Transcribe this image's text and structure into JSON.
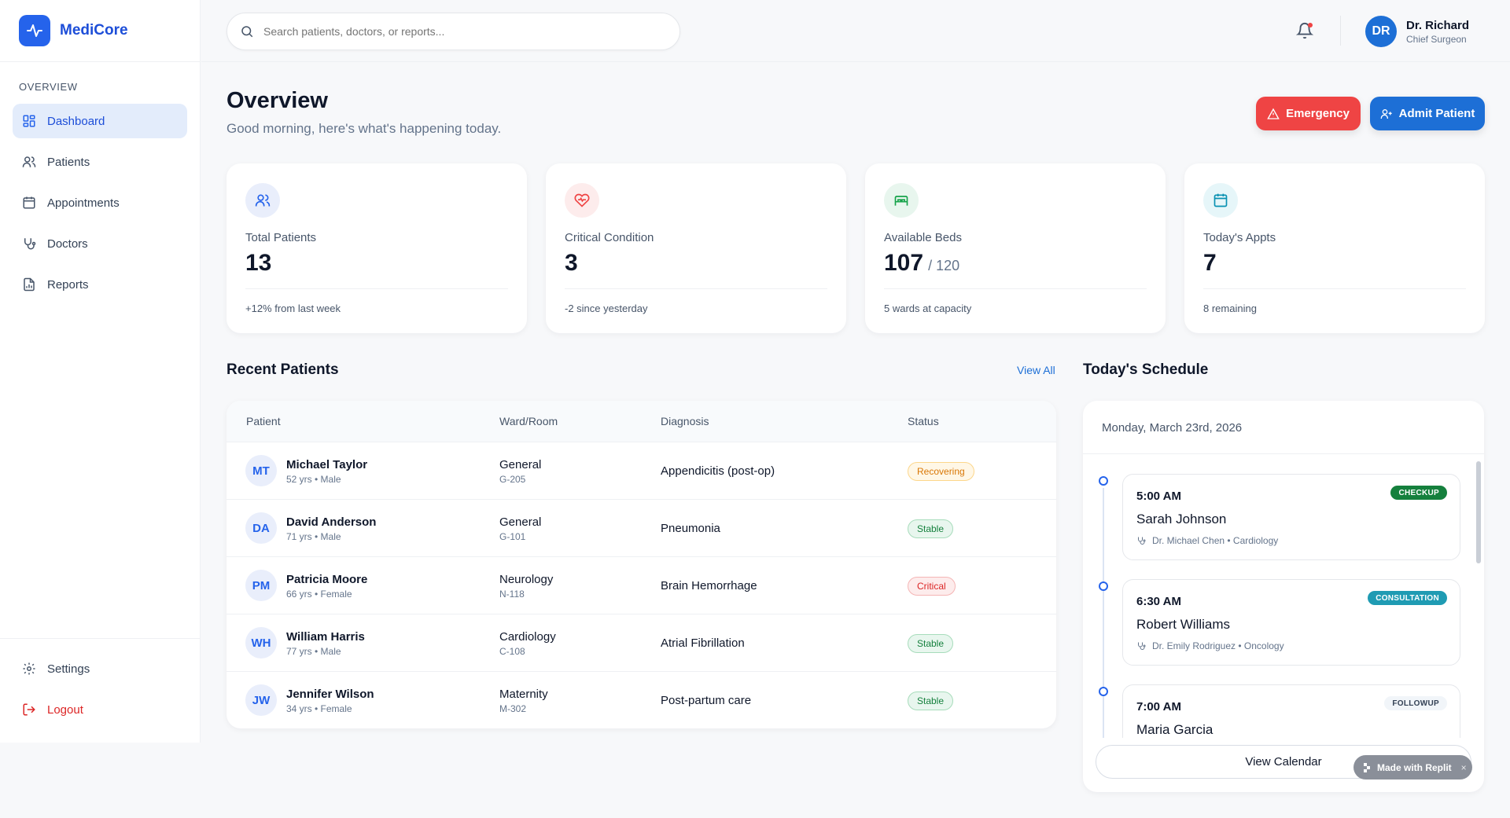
{
  "brand": {
    "name": "MediCore"
  },
  "sidebar": {
    "heading": "OVERVIEW",
    "items": [
      {
        "label": "Dashboard",
        "icon": "dashboard-icon",
        "active": true
      },
      {
        "label": "Patients",
        "icon": "users-icon"
      },
      {
        "label": "Appointments",
        "icon": "calendar-icon"
      },
      {
        "label": "Doctors",
        "icon": "stethoscope-icon"
      },
      {
        "label": "Reports",
        "icon": "report-icon"
      }
    ],
    "bottom": [
      {
        "label": "Settings",
        "icon": "gear-icon"
      },
      {
        "label": "Logout",
        "icon": "logout-icon"
      }
    ]
  },
  "header": {
    "search_placeholder": "Search patients, doctors, or reports...",
    "user": {
      "initials": "DR",
      "name": "Dr. Richard",
      "role": "Chief Surgeon"
    }
  },
  "page": {
    "title": "Overview",
    "subtitle": "Good morning, here's what's happening today.",
    "emergency_label": "Emergency",
    "admit_label": "Admit Patient"
  },
  "stats": [
    {
      "label": "Total Patients",
      "value": "13",
      "suffix": "",
      "note": "+12% from last week",
      "icon": "users-icon",
      "color": "#2563eb"
    },
    {
      "label": "Critical Condition",
      "value": "3",
      "suffix": "",
      "note": "-2 since yesterday",
      "icon": "heart-pulse-icon",
      "color": "#ef4444"
    },
    {
      "label": "Available Beds",
      "value": "107",
      "suffix": "/ 120",
      "note": "5 wards at capacity",
      "icon": "bed-icon",
      "color": "#16a34a"
    },
    {
      "label": "Today's Appts",
      "value": "7",
      "suffix": "",
      "note": "8 remaining",
      "icon": "calendar-icon",
      "color": "#0891b2"
    }
  ],
  "recent_patients": {
    "title": "Recent Patients",
    "view_all": "View All",
    "columns": [
      "Patient",
      "Ward/Room",
      "Diagnosis",
      "Status"
    ],
    "rows": [
      {
        "initials": "MT",
        "name": "Michael Taylor",
        "meta": "52 yrs • Male",
        "ward": "General",
        "room": "G-205",
        "diagnosis": "Appendicitis (post-op)",
        "status": "Recovering"
      },
      {
        "initials": "DA",
        "name": "David Anderson",
        "meta": "71 yrs • Male",
        "ward": "General",
        "room": "G-101",
        "diagnosis": "Pneumonia",
        "status": "Stable"
      },
      {
        "initials": "PM",
        "name": "Patricia Moore",
        "meta": "66 yrs • Female",
        "ward": "Neurology",
        "room": "N-118",
        "diagnosis": "Brain Hemorrhage",
        "status": "Critical"
      },
      {
        "initials": "WH",
        "name": "William Harris",
        "meta": "77 yrs • Male",
        "ward": "Cardiology",
        "room": "C-108",
        "diagnosis": "Atrial Fibrillation",
        "status": "Stable"
      },
      {
        "initials": "JW",
        "name": "Jennifer Wilson",
        "meta": "34 yrs • Female",
        "ward": "Maternity",
        "room": "M-302",
        "diagnosis": "Post-partum care",
        "status": "Stable"
      }
    ]
  },
  "schedule": {
    "title": "Today's Schedule",
    "date": "Monday, March 23rd, 2026",
    "appointments": [
      {
        "time": "5:00 AM",
        "patient": "Sarah Johnson",
        "doctor": "Dr. Michael Chen • Cardiology",
        "type": "CHECKUP"
      },
      {
        "time": "6:30 AM",
        "patient": "Robert Williams",
        "doctor": "Dr. Emily Rodriguez • Oncology",
        "type": "CONSULTATION"
      },
      {
        "time": "7:00 AM",
        "patient": "Maria Garcia",
        "doctor": "",
        "type": "FOLLOWUP"
      }
    ],
    "calendar_button": "View Calendar"
  },
  "badge": {
    "label": "Made with Replit",
    "close": "×"
  }
}
